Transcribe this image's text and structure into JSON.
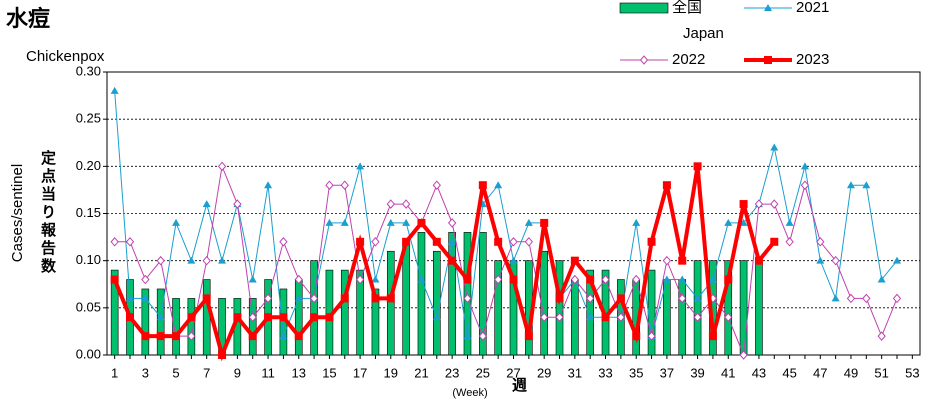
{
  "chart_data": {
    "type": "bar",
    "title": "水痘",
    "subtitle": "Chickenpox",
    "y_label": "Cases/sentinel",
    "y_label_jp": "定点当り報告数",
    "x_label": "週",
    "x_label_en": "(Week)",
    "legend_note": "Japan",
    "categories": [
      "1",
      null,
      "3",
      null,
      "5",
      null,
      "7",
      null,
      "9",
      null,
      "11",
      null,
      "13",
      null,
      "15",
      null,
      "17",
      null,
      "19",
      null,
      "21",
      null,
      "23",
      null,
      "25",
      null,
      "27",
      null,
      "29",
      null,
      "31",
      null,
      "33",
      null,
      "35",
      null,
      "37",
      null,
      "39",
      null,
      "41",
      null,
      "43",
      null,
      "45",
      null,
      "47",
      null,
      "49",
      null,
      "51",
      null,
      "53"
    ],
    "ylim": [
      0,
      0.3
    ],
    "yticks": [
      {
        "value": 0,
        "label": "0.00"
      },
      {
        "value": 0.05,
        "label": "0.05"
      },
      {
        "value": 0.1,
        "label": "0.10"
      },
      {
        "value": 0.15,
        "label": "0.15"
      },
      {
        "value": 0.2,
        "label": "0.20"
      },
      {
        "value": 0.25,
        "label": "0.25"
      },
      {
        "value": 0.3,
        "label": "0.30"
      }
    ],
    "grid": true,
    "series": [
      {
        "name": "全国",
        "type": "bar",
        "color": "#00c06e",
        "values": [
          0.09,
          0.08,
          0.07,
          0.07,
          0.06,
          0.06,
          0.08,
          0.06,
          0.06,
          0.06,
          0.08,
          0.07,
          0.08,
          0.1,
          0.09,
          0.09,
          0.09,
          0.07,
          0.11,
          0.12,
          0.13,
          0.11,
          0.13,
          0.13,
          0.13,
          0.1,
          0.1,
          0.1,
          0.11,
          0.1,
          0.08,
          0.09,
          0.09,
          0.08,
          0.08,
          0.09,
          0.08,
          0.08,
          0.1,
          0.1,
          0.1,
          0.1,
          0.1,
          null,
          null,
          null,
          null,
          null,
          null,
          null,
          null,
          null,
          null
        ]
      },
      {
        "name": "2021",
        "type": "line",
        "marker": "triangle",
        "color": "#1a9fd0",
        "line_width": 1,
        "values": [
          0.28,
          0.06,
          0.06,
          0.04,
          0.14,
          0.1,
          0.16,
          0.1,
          0.16,
          0.08,
          0.18,
          0.02,
          0.06,
          0.06,
          0.14,
          0.14,
          0.2,
          0.08,
          0.14,
          0.14,
          0.08,
          0.04,
          0.12,
          0.02,
          0.16,
          0.18,
          0.1,
          0.14,
          0.14,
          0.06,
          0.08,
          0.04,
          0.04,
          0.04,
          0.14,
          0.02,
          0.08,
          0.08,
          0.06,
          0.08,
          0.14,
          0.14,
          0.16,
          0.22,
          0.14,
          0.2,
          0.1,
          0.06,
          0.18,
          0.18,
          0.08,
          0.1,
          null
        ]
      },
      {
        "name": "2022",
        "type": "line",
        "marker": "diamond",
        "color": "#c040b0",
        "line_width": 1,
        "values": [
          0.12,
          0.12,
          0.08,
          0.1,
          0.02,
          0.02,
          0.1,
          0.2,
          0.16,
          0.04,
          0.06,
          0.12,
          0.08,
          0.06,
          0.18,
          0.18,
          0.08,
          0.12,
          0.16,
          0.16,
          0.14,
          0.18,
          0.14,
          0.06,
          0.02,
          0.08,
          0.12,
          0.12,
          0.04,
          0.04,
          0.08,
          0.06,
          0.08,
          0.04,
          0.08,
          0.02,
          0.1,
          0.06,
          0.04,
          0.06,
          0.04,
          0,
          0.16,
          0.16,
          0.12,
          0.18,
          0.12,
          0.1,
          0.06,
          0.06,
          0.02,
          0.06,
          null
        ]
      },
      {
        "name": "2023",
        "type": "line",
        "marker": "square",
        "color": "#ff0000",
        "line_width": 4,
        "values": [
          0.08,
          0.04,
          0.02,
          0.02,
          0.02,
          0.04,
          0.06,
          0,
          0.04,
          0.02,
          0.04,
          0.04,
          0.02,
          0.04,
          0.04,
          0.06,
          0.12,
          0.06,
          0.06,
          0.12,
          0.14,
          0.12,
          0.1,
          0.08,
          0.18,
          0.12,
          0.08,
          0.02,
          0.14,
          0.06,
          0.1,
          0.08,
          0.04,
          0.06,
          0.02,
          0.12,
          0.18,
          0.1,
          0.2,
          0.02,
          0.08,
          0.16,
          0.1,
          0.12,
          null,
          null,
          null,
          null,
          null,
          null,
          null,
          null,
          null
        ]
      }
    ]
  }
}
